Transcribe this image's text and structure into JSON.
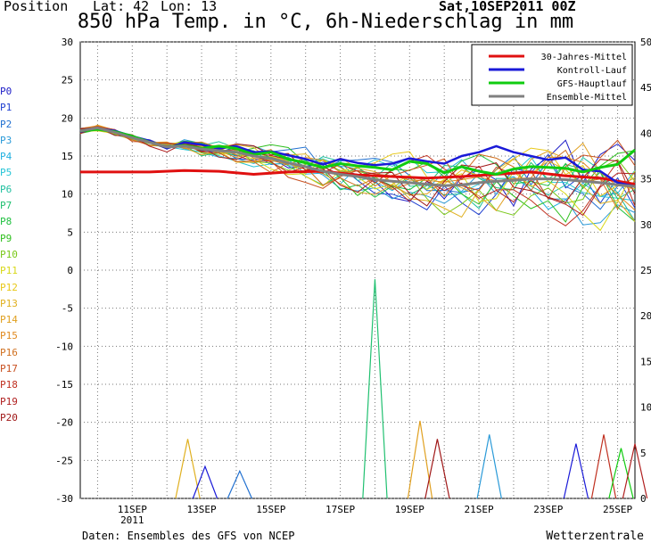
{
  "header": {
    "position_label": "Position",
    "lat_label": "Lat: 42",
    "lon_label": "Lon: 13",
    "run": "Sat,10SEP2011 00Z"
  },
  "footer": {
    "left": "Daten: Ensembles des GFS von NCEP",
    "right": "Wetterzentrale"
  },
  "members": [
    {
      "label": "P0",
      "color": "#2020c8"
    },
    {
      "label": "P1",
      "color": "#1f3fd0"
    },
    {
      "label": "P2",
      "color": "#1f6fd0"
    },
    {
      "label": "P3",
      "color": "#2a9ad8"
    },
    {
      "label": "P4",
      "color": "#22b0e0"
    },
    {
      "label": "P5",
      "color": "#25c4d6"
    },
    {
      "label": "P6",
      "color": "#22c0a0"
    },
    {
      "label": "P7",
      "color": "#20c070"
    },
    {
      "label": "P8",
      "color": "#20c040"
    },
    {
      "label": "P9",
      "color": "#30c020"
    },
    {
      "label": "P10",
      "color": "#7ac81a"
    },
    {
      "label": "P11",
      "color": "#d8d818"
    },
    {
      "label": "P12",
      "color": "#e8c818"
    },
    {
      "label": "P13",
      "color": "#e0b020"
    },
    {
      "label": "P14",
      "color": "#e0a020"
    },
    {
      "label": "P15",
      "color": "#e08a20"
    },
    {
      "label": "P16",
      "color": "#d07020"
    },
    {
      "label": "P17",
      "color": "#c85020"
    },
    {
      "label": "P18",
      "color": "#c03020"
    },
    {
      "label": "P19",
      "color": "#b02020"
    },
    {
      "label": "P20",
      "color": "#a01818"
    }
  ],
  "chart_data": {
    "type": "line",
    "title": "850 hPa Temp. in °C, 6h-Niederschlag in mm",
    "x_ticks": [
      "11SEP 2011",
      "13SEP",
      "15SEP",
      "17SEP",
      "19SEP",
      "21SEP",
      "23SEP",
      "25SEP"
    ],
    "x_range_days": [
      10.0,
      26.0
    ],
    "ylim_left": [
      -30,
      30
    ],
    "yticks_left": [
      30,
      25,
      20,
      15,
      10,
      5,
      0,
      -5,
      -10,
      -15,
      -20,
      -25,
      -30
    ],
    "ylim_right": [
      0,
      50
    ],
    "yticks_right": [
      50,
      45,
      40,
      35,
      30,
      25,
      20,
      15,
      10,
      5,
      0
    ],
    "grid": true,
    "legend_position": "top-right",
    "legend": [
      {
        "name": "30-Jahres-Mittel",
        "color": "#e01010"
      },
      {
        "name": "Kontroll-Lauf",
        "color": "#1a1ad8"
      },
      {
        "name": "GFS-Hauptlauf",
        "color": "#10cc10"
      },
      {
        "name": "Ensemble-Mittel",
        "color": "#808080"
      }
    ],
    "main_series": [
      {
        "key": "clim",
        "color": "#e01010",
        "width": 3,
        "points": [
          [
            10,
            12.9
          ],
          [
            12,
            12.9
          ],
          [
            13,
            13.1
          ],
          [
            14,
            13.0
          ],
          [
            15,
            12.6
          ],
          [
            16,
            12.9
          ],
          [
            17,
            13.0
          ],
          [
            18,
            12.5
          ],
          [
            19,
            12.3
          ],
          [
            20,
            12.1
          ],
          [
            21,
            12.3
          ],
          [
            22,
            12.6
          ],
          [
            23,
            12.9
          ],
          [
            24,
            12.4
          ],
          [
            25,
            12.1
          ],
          [
            26,
            11.3
          ]
        ]
      },
      {
        "key": "control",
        "color": "#1a1ad8",
        "width": 2.5,
        "points": [
          [
            10,
            18.2
          ],
          [
            10.5,
            18.6
          ],
          [
            11,
            18.3
          ],
          [
            11.5,
            17.6
          ],
          [
            12,
            17.0
          ],
          [
            12.5,
            16.0
          ],
          [
            13,
            16.8
          ],
          [
            13.5,
            16.5
          ],
          [
            14,
            16.0
          ],
          [
            14.5,
            16.3
          ],
          [
            15,
            15.5
          ],
          [
            15.5,
            15.6
          ],
          [
            16,
            15.1
          ],
          [
            16.5,
            14.6
          ],
          [
            17,
            13.9
          ],
          [
            17.5,
            14.6
          ],
          [
            18,
            14.1
          ],
          [
            18.5,
            13.8
          ],
          [
            19,
            14.0
          ],
          [
            19.5,
            14.7
          ],
          [
            20,
            14.3
          ],
          [
            20.5,
            14.0
          ],
          [
            21,
            15.0
          ],
          [
            21.5,
            15.5
          ],
          [
            22,
            16.3
          ],
          [
            22.5,
            15.5
          ],
          [
            23,
            15.0
          ],
          [
            23.5,
            14.5
          ],
          [
            24,
            14.8
          ],
          [
            24.5,
            13.2
          ],
          [
            25,
            13.0
          ],
          [
            25.5,
            11.5
          ],
          [
            26,
            11.0
          ]
        ]
      },
      {
        "key": "gfs",
        "color": "#10cc10",
        "width": 3,
        "points": [
          [
            10,
            18.3
          ],
          [
            10.5,
            18.5
          ],
          [
            11,
            18.2
          ],
          [
            11.5,
            17.6
          ],
          [
            12,
            16.8
          ],
          [
            12.5,
            16.2
          ],
          [
            13,
            16.4
          ],
          [
            13.5,
            16.0
          ],
          [
            14,
            16.3
          ],
          [
            14.5,
            16.0
          ],
          [
            15,
            15.2
          ],
          [
            15.5,
            15.5
          ],
          [
            16,
            14.6
          ],
          [
            16.5,
            14.1
          ],
          [
            17,
            13.5
          ],
          [
            17.5,
            14.0
          ],
          [
            18,
            13.7
          ],
          [
            18.5,
            13.5
          ],
          [
            19,
            13.2
          ],
          [
            19.5,
            14.3
          ],
          [
            20,
            14.0
          ],
          [
            20.5,
            12.8
          ],
          [
            21,
            13.6
          ],
          [
            21.5,
            13.0
          ],
          [
            22,
            12.6
          ],
          [
            22.5,
            13.3
          ],
          [
            23,
            13.6
          ],
          [
            23.5,
            13.5
          ],
          [
            24,
            13.4
          ],
          [
            24.5,
            12.9
          ],
          [
            25,
            13.5
          ],
          [
            25.5,
            13.9
          ],
          [
            26,
            15.8
          ]
        ]
      },
      {
        "key": "mean",
        "color": "#808080",
        "width": 3,
        "points": [
          [
            10,
            18.3
          ],
          [
            10.5,
            18.7
          ],
          [
            11,
            18.1
          ],
          [
            11.5,
            17.4
          ],
          [
            12,
            16.8
          ],
          [
            12.5,
            16.2
          ],
          [
            13,
            16.3
          ],
          [
            13.5,
            15.9
          ],
          [
            14,
            15.7
          ],
          [
            14.5,
            15.5
          ],
          [
            15,
            15.0
          ],
          [
            15.5,
            14.7
          ],
          [
            16,
            14.1
          ],
          [
            16.5,
            13.6
          ],
          [
            17,
            13.0
          ],
          [
            17.5,
            12.6
          ],
          [
            18,
            12.3
          ],
          [
            18.5,
            11.9
          ],
          [
            19,
            11.7
          ],
          [
            19.5,
            11.5
          ],
          [
            20,
            11.3
          ],
          [
            20.5,
            11.1
          ],
          [
            21,
            11.2
          ],
          [
            21.5,
            11.5
          ],
          [
            22,
            11.7
          ],
          [
            22.5,
            11.8
          ],
          [
            23,
            12.0
          ],
          [
            23.5,
            12.0
          ],
          [
            24,
            11.9
          ],
          [
            24.5,
            11.7
          ],
          [
            25,
            11.5
          ],
          [
            25.5,
            11.2
          ],
          [
            26,
            11.0
          ]
        ]
      }
    ],
    "precip_peaks_mm": [
      {
        "day": 13.1,
        "mm": 6.5,
        "color": "#e0b020"
      },
      {
        "day": 13.6,
        "mm": 3.5,
        "color": "#1a1ad8"
      },
      {
        "day": 14.6,
        "mm": 3.0,
        "color": "#1f6fd0"
      },
      {
        "day": 18.5,
        "mm": 24.0,
        "color": "#20c070"
      },
      {
        "day": 19.8,
        "mm": 8.5,
        "color": "#e0a020"
      },
      {
        "day": 20.3,
        "mm": 6.5,
        "color": "#a01818"
      },
      {
        "day": 21.8,
        "mm": 7.0,
        "color": "#2a9ad8"
      },
      {
        "day": 24.3,
        "mm": 6.0,
        "color": "#1a1ad8"
      },
      {
        "day": 25.1,
        "mm": 7.0,
        "color": "#c03020"
      },
      {
        "day": 25.6,
        "mm": 5.5,
        "color": "#10cc10"
      },
      {
        "day": 26.0,
        "mm": 6.0,
        "color": "#b02020"
      }
    ]
  }
}
